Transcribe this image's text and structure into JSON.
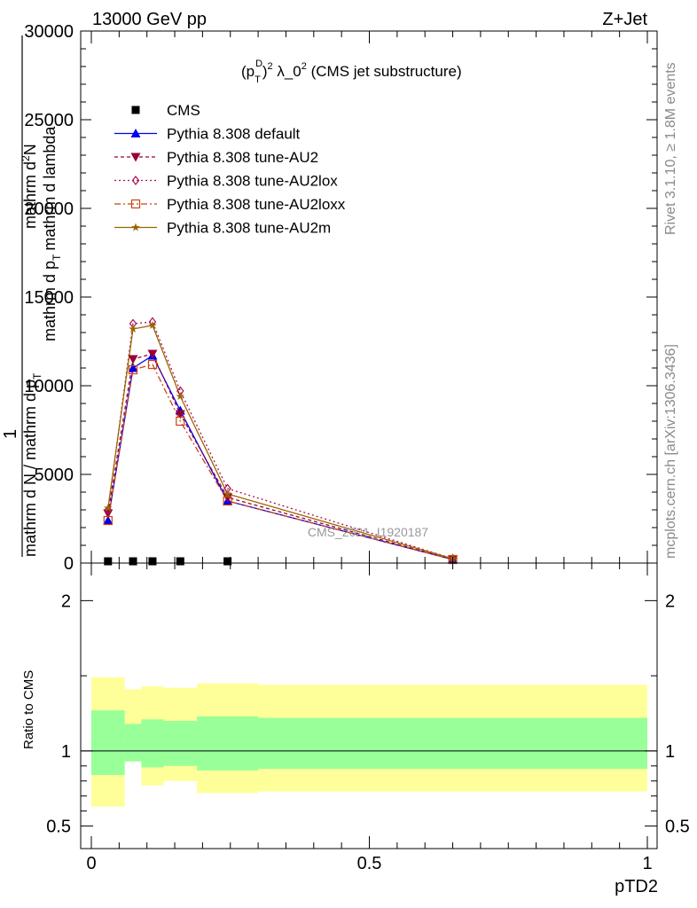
{
  "header": {
    "left_title": "13000 GeV pp",
    "right_title": "Z+Jet"
  },
  "side_labels": {
    "top": "Rivet 3.1.10, ≥ 1.8M events",
    "bottom": "mcplots.cern.ch [arXiv:1306.3436]"
  },
  "watermark": "CMS_2021_I1920187",
  "chart_data": [
    {
      "type": "line",
      "title_parts": {
        "base": "(p",
        "sup1": "D",
        "sub1": "T",
        "close": ")",
        "sup2": "2",
        "rest": " λ_0",
        "sup3": "2",
        "tail": " (CMS jet substructure)"
      },
      "ylabel_parts": {
        "one": "1",
        "denom": "mathrm d N / mathrm d p",
        "denom_sub": "T",
        "numer_a": "mathrm d",
        "numer_sup": "2",
        "numer_b": "N",
        "numer_mid": "mathrm d p",
        "numer_sub": "T",
        "numer_end": "mathrm d lambda"
      },
      "ylim": [
        0,
        30000
      ],
      "yticks": [
        0,
        5000,
        10000,
        15000,
        20000,
        25000,
        30000
      ],
      "ytick_labels": [
        "0",
        "5000",
        "10000",
        "15000",
        "20000",
        "25000",
        "30000"
      ],
      "xlim": [
        0,
        1
      ],
      "series": [
        {
          "name": "CMS",
          "color": "#000000",
          "marker": "square",
          "dash": "",
          "x": [
            0.03,
            0.075,
            0.11,
            0.16,
            0.245
          ],
          "y": [
            0,
            0,
            0,
            0,
            0
          ]
        },
        {
          "name": "Pythia 8.308 default",
          "color": "#0000ee",
          "marker": "triangle-up",
          "dash": "",
          "x": [
            0.03,
            0.075,
            0.11,
            0.16,
            0.245,
            0.65
          ],
          "y": [
            2400,
            11000,
            11700,
            8600,
            3500,
            200
          ]
        },
        {
          "name": "Pythia 8.308 tune-AU2",
          "color": "#990033",
          "marker": "triangle-down",
          "dash": "4,3",
          "x": [
            0.03,
            0.075,
            0.11,
            0.16,
            0.245,
            0.65
          ],
          "y": [
            2800,
            11500,
            11800,
            8400,
            3700,
            200
          ]
        },
        {
          "name": "Pythia 8.308 tune-AU2lox",
          "color": "#aa1155",
          "marker": "diamond-open",
          "dash": "2,3",
          "x": [
            0.03,
            0.075,
            0.11,
            0.16,
            0.245,
            0.65
          ],
          "y": [
            3000,
            13500,
            13600,
            9700,
            4200,
            250
          ]
        },
        {
          "name": "Pythia 8.308 tune-AU2loxx",
          "color": "#cc4411",
          "marker": "square-open",
          "dash": "7,3,2,3",
          "x": [
            0.03,
            0.075,
            0.11,
            0.16,
            0.245,
            0.65
          ],
          "y": [
            2400,
            10900,
            11200,
            8000,
            3500,
            200
          ]
        },
        {
          "name": "Pythia 8.308 tune-AU2m",
          "color": "#996600",
          "marker": "star",
          "dash": "",
          "x": [
            0.03,
            0.075,
            0.11,
            0.16,
            0.245,
            0.65
          ],
          "y": [
            3100,
            13200,
            13400,
            9400,
            3900,
            250
          ]
        }
      ]
    },
    {
      "type": "area",
      "ylabel": "Ratio to CMS",
      "xlabel": "pTD2",
      "ylim": [
        0.35,
        2.25
      ],
      "xlim": [
        0,
        1
      ],
      "yticks": [
        0.5,
        1,
        2
      ],
      "ytick_labels": [
        "0.5",
        "1",
        "2"
      ],
      "xticks": [
        0,
        0.5,
        1
      ],
      "xtick_labels": [
        "0",
        "0.5",
        "1"
      ],
      "reference_line": 1,
      "bin_edges": [
        0,
        0.06,
        0.09,
        0.13,
        0.19,
        0.3,
        1.0
      ],
      "band_outer": {
        "color": "#ffff99",
        "low": [
          0.63,
          0.93,
          0.77,
          0.8,
          0.72,
          0.73
        ],
        "high": [
          1.49,
          1.41,
          1.43,
          1.42,
          1.45,
          1.44
        ]
      },
      "band_inner": {
        "color": "#99ff99",
        "low": [
          0.84,
          0.93,
          0.89,
          0.9,
          0.87,
          0.88
        ],
        "high": [
          1.27,
          1.18,
          1.21,
          1.2,
          1.23,
          1.22
        ]
      }
    }
  ]
}
